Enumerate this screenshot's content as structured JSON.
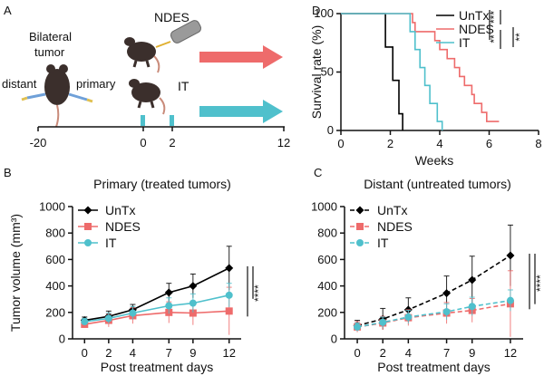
{
  "panel_a": {
    "letter": "A",
    "label_bilateral": "Bilateral",
    "label_tumor": "tumor",
    "label_distant": "distant",
    "label_primary": "primary",
    "label_ndes": "NDES",
    "label_it": "IT",
    "timeline_ticks": [
      "-20",
      "0",
      "2",
      "12"
    ],
    "colors": {
      "ndes_arrow": "#ee6b6b",
      "it_arrow": "#4fc0cc",
      "mouse": "#3b2f2c",
      "device": "#8a8a8a"
    }
  },
  "chart_data": [
    {
      "id": "D",
      "panel_letter": "D",
      "type": "line",
      "subtype": "kaplan-meier",
      "xlabel": "Weeks",
      "ylabel": "Survival rate (%)",
      "xlim": [
        0,
        8
      ],
      "ylim": [
        0,
        100
      ],
      "xticks": [
        0,
        2,
        4,
        6,
        8
      ],
      "yticks": [
        0,
        50,
        100
      ],
      "legend": [
        "UnTx",
        "NDES",
        "IT"
      ],
      "stars": [
        "***",
        "**",
        "**"
      ],
      "series": [
        {
          "name": "UnTx",
          "color": "#000000",
          "steps": [
            [
              0,
              100
            ],
            [
              1.8,
              100
            ],
            [
              1.8,
              71.4
            ],
            [
              2.1,
              71.4
            ],
            [
              2.1,
              42.9
            ],
            [
              2.35,
              42.9
            ],
            [
              2.35,
              14.3
            ],
            [
              2.5,
              14.3
            ],
            [
              2.5,
              0
            ]
          ]
        },
        {
          "name": "NDES",
          "color": "#ee6b6b",
          "steps": [
            [
              0,
              100
            ],
            [
              2.9,
              100
            ],
            [
              2.9,
              92.3
            ],
            [
              3.0,
              92.3
            ],
            [
              3.0,
              84.6
            ],
            [
              3.8,
              84.6
            ],
            [
              3.8,
              76.9
            ],
            [
              4.0,
              76.9
            ],
            [
              4.0,
              69.2
            ],
            [
              4.3,
              69.2
            ],
            [
              4.3,
              61.5
            ],
            [
              4.6,
              61.5
            ],
            [
              4.6,
              53.8
            ],
            [
              4.8,
              53.8
            ],
            [
              4.8,
              46.2
            ],
            [
              5.0,
              46.2
            ],
            [
              5.0,
              38.5
            ],
            [
              5.3,
              38.5
            ],
            [
              5.3,
              30.8
            ],
            [
              5.4,
              30.8
            ],
            [
              5.4,
              23.1
            ],
            [
              5.7,
              23.1
            ],
            [
              5.7,
              15.4
            ],
            [
              5.9,
              15.4
            ],
            [
              5.9,
              7.7
            ],
            [
              6.4,
              7.7
            ]
          ]
        },
        {
          "name": "IT",
          "color": "#4fc0cc",
          "steps": [
            [
              0,
              100
            ],
            [
              2.8,
              100
            ],
            [
              2.8,
              84.6
            ],
            [
              3.0,
              84.6
            ],
            [
              3.0,
              69.2
            ],
            [
              3.2,
              69.2
            ],
            [
              3.2,
              53.8
            ],
            [
              3.4,
              53.8
            ],
            [
              3.4,
              38.5
            ],
            [
              3.6,
              38.5
            ],
            [
              3.6,
              23.1
            ],
            [
              3.9,
              23.1
            ],
            [
              3.9,
              7.7
            ],
            [
              4.1,
              7.7
            ],
            [
              4.1,
              0
            ]
          ]
        }
      ]
    },
    {
      "id": "B",
      "panel_letter": "B",
      "type": "line",
      "title": "Primary (treated tumors)",
      "xlabel": "Post treatment days",
      "ylabel": "Tumor volume (mm³)",
      "x": [
        0,
        2,
        4,
        7,
        9,
        12
      ],
      "xlim": [
        -1,
        13
      ],
      "ylim": [
        0,
        1000
      ],
      "xticks": [
        0,
        2,
        4,
        7,
        9,
        12
      ],
      "yticks": [
        0,
        200,
        400,
        600,
        800,
        1000
      ],
      "dashed": false,
      "significance": "****",
      "series": [
        {
          "name": "UnTx",
          "color": "#000000",
          "marker": "diamond",
          "values": [
            140,
            170,
            220,
            350,
            400,
            535
          ],
          "errors": [
            25,
            40,
            40,
            70,
            90,
            165
          ]
        },
        {
          "name": "NDES",
          "color": "#ee6b6b",
          "marker": "square",
          "values": [
            110,
            140,
            175,
            200,
            195,
            210
          ],
          "errors": [
            25,
            50,
            60,
            80,
            90,
            180
          ]
        },
        {
          "name": "IT",
          "color": "#4fc0cc",
          "marker": "circle",
          "values": [
            130,
            155,
            195,
            250,
            270,
            330
          ],
          "errors": [
            25,
            40,
            50,
            60,
            70,
            90
          ]
        }
      ]
    },
    {
      "id": "C",
      "panel_letter": "C",
      "type": "line",
      "title": "Distant (untreated tumors)",
      "xlabel": "Post treatment days",
      "ylabel": "",
      "x": [
        0,
        2,
        4,
        7,
        9,
        12
      ],
      "xlim": [
        -1,
        13
      ],
      "ylim": [
        0,
        1000
      ],
      "xticks": [
        0,
        2,
        4,
        7,
        9,
        12
      ],
      "yticks": [
        0,
        200,
        400,
        600,
        800,
        1000
      ],
      "dashed": true,
      "significance": "****",
      "series": [
        {
          "name": "UnTx",
          "color": "#000000",
          "marker": "diamond",
          "values": [
            100,
            150,
            220,
            345,
            445,
            630
          ],
          "errors": [
            40,
            80,
            90,
            130,
            180,
            230
          ]
        },
        {
          "name": "NDES",
          "color": "#ee6b6b",
          "marker": "square",
          "values": [
            90,
            120,
            160,
            195,
            215,
            265
          ],
          "errors": [
            40,
            50,
            60,
            80,
            90,
            250
          ]
        },
        {
          "name": "IT",
          "color": "#4fc0cc",
          "marker": "circle",
          "values": [
            90,
            125,
            165,
            205,
            245,
            290
          ],
          "errors": [
            30,
            40,
            50,
            60,
            70,
            80
          ]
        }
      ]
    }
  ]
}
